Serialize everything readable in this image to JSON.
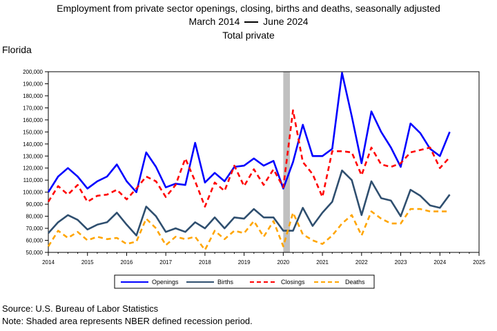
{
  "title": {
    "line1": "Employment from private sector openings, closing, births and deaths, seasonally adjusted",
    "line2_start": "March 2014",
    "line2_end": "June 2024",
    "line3": "Total private"
  },
  "state_label": "Florida",
  "source_note": "Source: U.S. Bureau of Labor Statistics",
  "shade_note": "Note: Shaded area represents NBER defined recession period.",
  "colors": {
    "openings": "#0000ff",
    "births": "#2f4f6f",
    "closings": "#ff0000",
    "deaths": "#ffa500",
    "recession": "#c0c0c0"
  },
  "chart_data": {
    "type": "line",
    "xlim": [
      2014,
      2025
    ],
    "ylim": [
      50000,
      200000
    ],
    "x_ticks": [
      "2014",
      "2015",
      "2016",
      "2017",
      "2018",
      "2019",
      "2020",
      "2021",
      "2022",
      "2023",
      "2024",
      "2025"
    ],
    "y_ticks": [
      "50,000",
      "60,000",
      "70,000",
      "80,000",
      "90,000",
      "100,000",
      "110,000",
      "120,000",
      "130,000",
      "140,000",
      "150,000",
      "160,000",
      "170,000",
      "180,000",
      "190,000",
      "200,000"
    ],
    "recession": [
      2020.0,
      2020.17
    ],
    "legend_position": "bottom",
    "x": [
      2014.0,
      2014.25,
      2014.5,
      2014.75,
      2015.0,
      2015.25,
      2015.5,
      2015.75,
      2016.0,
      2016.25,
      2016.5,
      2016.75,
      2017.0,
      2017.25,
      2017.5,
      2017.75,
      2018.0,
      2018.25,
      2018.5,
      2018.75,
      2019.0,
      2019.25,
      2019.5,
      2019.75,
      2020.0,
      2020.25,
      2020.5,
      2020.75,
      2021.0,
      2021.25,
      2021.5,
      2021.75,
      2022.0,
      2022.25,
      2022.5,
      2022.75,
      2023.0,
      2023.25,
      2023.5,
      2023.75,
      2024.0,
      2024.25
    ],
    "series": [
      {
        "name": "Openings",
        "style": "solid",
        "values": [
          100000,
          113000,
          120000,
          113000,
          103000,
          109000,
          113000,
          123000,
          109000,
          100000,
          133000,
          121000,
          104000,
          107000,
          106000,
          141000,
          108000,
          116000,
          109000,
          121000,
          122000,
          128000,
          122000,
          126000,
          103000,
          125000,
          156000,
          130000,
          130000,
          136000,
          199000,
          163000,
          124000,
          167000,
          150000,
          137000,
          121000,
          157000,
          149000,
          136000,
          130000,
          150000
        ]
      },
      {
        "name": "Births",
        "style": "solid",
        "values": [
          66000,
          75000,
          81000,
          77000,
          69000,
          73000,
          75000,
          83000,
          73000,
          64000,
          88000,
          80000,
          67000,
          70000,
          67000,
          75000,
          70000,
          79000,
          70000,
          79000,
          78000,
          86000,
          79000,
          79000,
          68000,
          68000,
          87000,
          72000,
          83000,
          92000,
          118000,
          110000,
          81000,
          109000,
          95000,
          93000,
          80000,
          102000,
          97000,
          89000,
          87000,
          98000
        ]
      },
      {
        "name": "Closings",
        "style": "dashed",
        "values": [
          92000,
          105000,
          98000,
          106000,
          92000,
          97000,
          98000,
          102000,
          94000,
          103000,
          113000,
          109000,
          96000,
          106000,
          128000,
          109000,
          88000,
          108000,
          101000,
          122000,
          105000,
          119000,
          106000,
          119000,
          104000,
          168000,
          125000,
          115000,
          96000,
          134000,
          134000,
          133000,
          114000,
          137000,
          123000,
          121000,
          124000,
          133000,
          135000,
          137000,
          120000,
          129000
        ]
      },
      {
        "name": "Deaths",
        "style": "dashed",
        "values": [
          55000,
          68000,
          62000,
          67000,
          60000,
          63000,
          61000,
          62000,
          57000,
          59000,
          78000,
          70000,
          56000,
          63000,
          61000,
          63000,
          52000,
          68000,
          61000,
          68000,
          66000,
          76000,
          63000,
          76000,
          55000,
          83000,
          65000,
          60000,
          57000,
          64000,
          74000,
          81000,
          64000,
          84000,
          78000,
          74000,
          74000,
          86000,
          86000,
          84000,
          84000,
          84000
        ]
      }
    ]
  }
}
